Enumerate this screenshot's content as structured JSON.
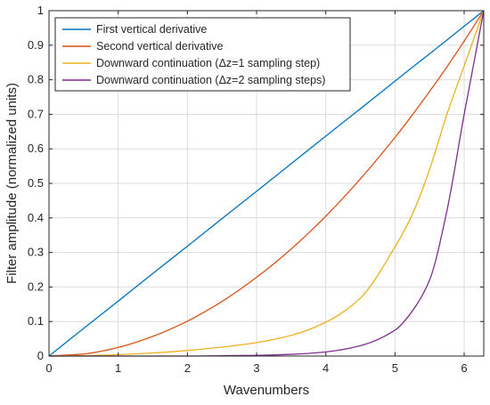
{
  "chart_data": {
    "type": "line",
    "title": "",
    "xlabel": "Wavenumbers",
    "ylabel": "Filter amplitude (normalized units)",
    "xlim": [
      0,
      6.283
    ],
    "ylim": [
      0,
      1
    ],
    "xticks": [
      0,
      1,
      2,
      3,
      4,
      5,
      6
    ],
    "yticks": [
      0,
      0.1,
      0.2,
      0.3,
      0.4,
      0.5,
      0.6,
      0.7,
      0.8,
      0.9,
      1
    ],
    "grid": true,
    "legend_position": "top-left",
    "x": [
      0,
      0.5,
      1,
      1.5,
      2,
      2.5,
      3,
      3.5,
      4,
      4.5,
      5,
      5.25,
      5.5,
      5.75,
      6,
      6.283
    ],
    "series": [
      {
        "name": "First vertical derivative",
        "color": "#0072BD",
        "values": [
          0,
          0.08,
          0.159,
          0.239,
          0.318,
          0.398,
          0.477,
          0.557,
          0.637,
          0.716,
          0.796,
          0.836,
          0.875,
          0.915,
          0.955,
          1.0
        ]
      },
      {
        "name": "Second vertical derivative",
        "color": "#D95319",
        "values": [
          0,
          0.006,
          0.025,
          0.057,
          0.101,
          0.158,
          0.228,
          0.31,
          0.405,
          0.513,
          0.633,
          0.698,
          0.766,
          0.837,
          0.912,
          1.0
        ]
      },
      {
        "name": "Downward continuation (Δz=1 sampling step)",
        "color": "#EDB120",
        "values": [
          0,
          0.001,
          0.004,
          0.009,
          0.016,
          0.026,
          0.039,
          0.06,
          0.098,
          0.168,
          0.316,
          0.41,
          0.54,
          0.7,
          0.84,
          1.0
        ]
      },
      {
        "name": "Downward continuation (Δz=2 sampling steps)",
        "color": "#7E2F8E",
        "values": [
          0,
          0,
          0,
          0,
          0,
          0.001,
          0.002,
          0.005,
          0.012,
          0.03,
          0.075,
          0.13,
          0.22,
          0.42,
          0.7,
          1.0
        ]
      }
    ]
  }
}
